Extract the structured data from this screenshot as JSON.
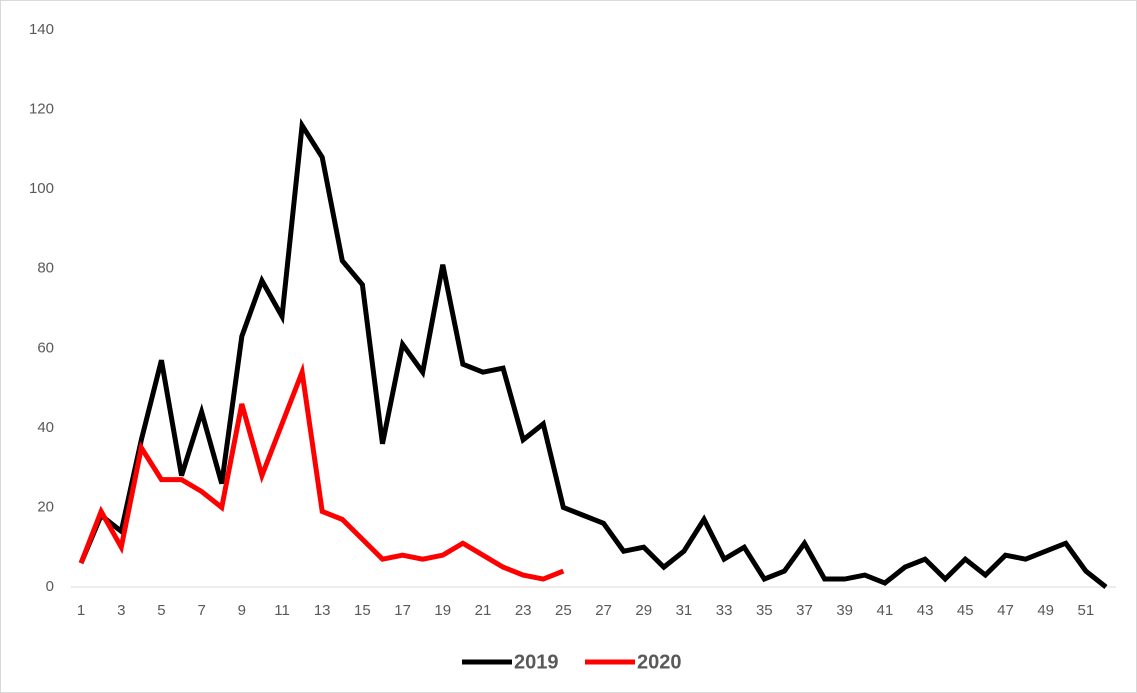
{
  "chart_data": {
    "type": "line",
    "categories": [
      "1",
      null,
      "3",
      null,
      "5",
      null,
      "7",
      null,
      "9",
      null,
      "11",
      null,
      "13",
      null,
      "15",
      null,
      "17",
      null,
      "19",
      null,
      "21",
      null,
      "23",
      null,
      "25",
      null,
      "27",
      null,
      "29",
      null,
      "31",
      null,
      "33",
      null,
      "35",
      null,
      "37",
      null,
      "39",
      null,
      "41",
      null,
      "43",
      null,
      "45",
      null,
      "47",
      null,
      "49",
      null,
      "51",
      null
    ],
    "series": [
      {
        "name": "2019",
        "color": "#000000",
        "values": [
          6,
          18,
          14,
          37,
          57,
          28,
          44,
          26,
          63,
          77,
          68,
          116,
          108,
          82,
          76,
          36,
          61,
          54,
          81,
          56,
          54,
          55,
          37,
          41,
          20,
          18,
          16,
          9,
          10,
          5,
          9,
          17,
          7,
          10,
          2,
          4,
          11,
          2,
          2,
          3,
          1,
          5,
          7,
          2,
          7,
          3,
          8,
          7,
          9,
          11,
          4,
          0
        ]
      },
      {
        "name": "2020",
        "color": "#ff0000",
        "values": [
          6,
          19,
          10,
          35,
          27,
          27,
          24,
          20,
          46,
          28,
          41,
          54,
          19,
          17,
          12,
          7,
          8,
          7,
          8,
          11,
          8,
          5,
          3,
          2,
          4,
          null,
          null,
          null,
          null,
          null,
          null,
          null,
          null,
          null,
          null,
          null,
          null,
          null,
          null,
          null,
          null,
          null,
          null,
          null,
          null,
          null,
          null,
          null,
          null,
          null,
          null,
          null
        ]
      }
    ],
    "ylim": [
      0,
      140
    ],
    "yticks": [
      0,
      20,
      40,
      60,
      80,
      100,
      120,
      140
    ],
    "grid": false,
    "legend": "bottom"
  }
}
